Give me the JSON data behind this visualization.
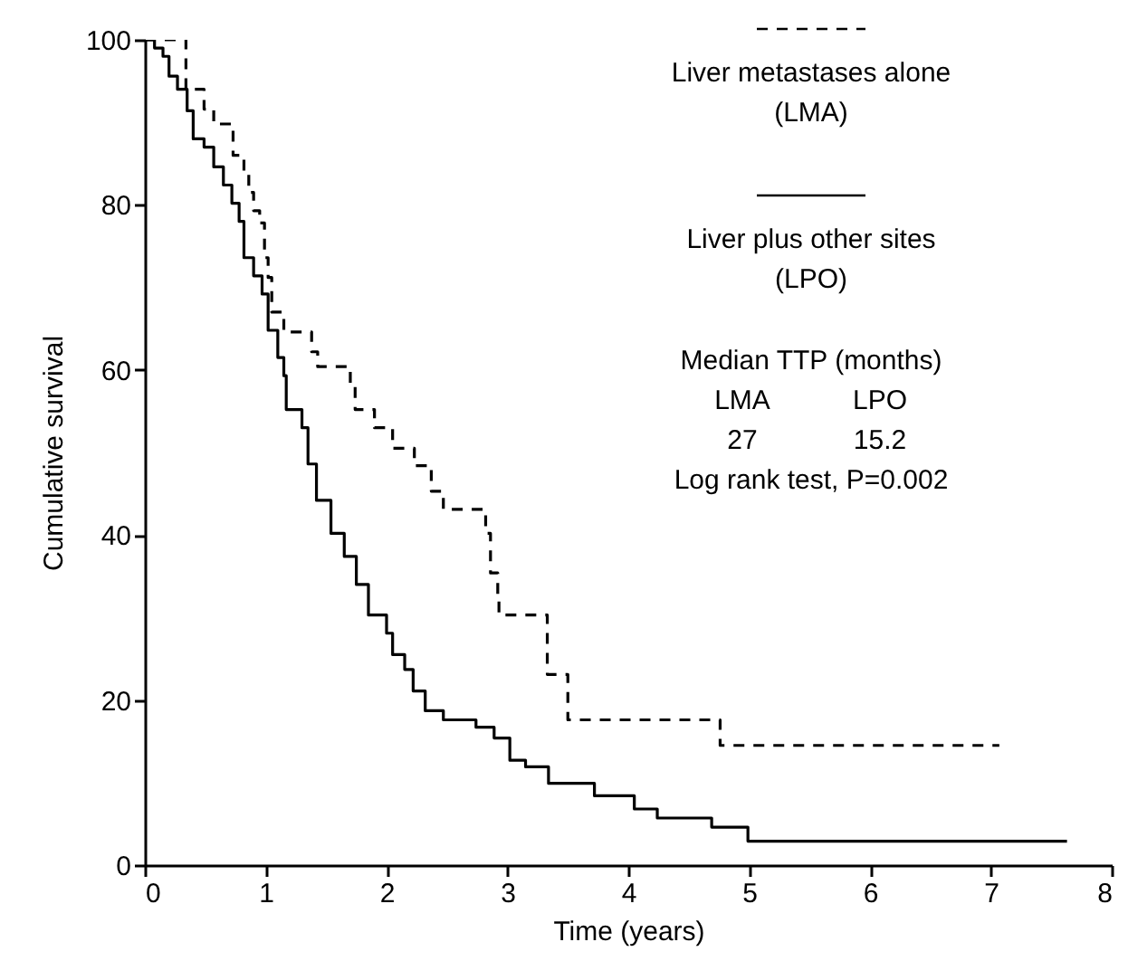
{
  "chart_data": {
    "type": "step",
    "xlabel": "Time (years)",
    "ylabel": "Cumulative survival",
    "xlim": [
      0,
      8
    ],
    "ylim": [
      0,
      100
    ],
    "xticks": [
      0,
      1,
      2,
      3,
      4,
      5,
      6,
      7,
      8
    ],
    "yticks": [
      0,
      20,
      40,
      60,
      80,
      100
    ],
    "grid": false,
    "legend": "top right",
    "marker": "none",
    "series": [
      {
        "name": "Liver metastases alone (LMA)",
        "color": "#000000",
        "line_style": "dashed",
        "x": [
          0,
          0.34,
          0.49,
          0.57,
          0.73,
          0.82,
          0.86,
          0.9,
          0.95,
          0.99,
          1.02,
          1.05,
          1.15,
          1.38,
          1.43,
          1.7,
          1.74,
          1.9,
          2.05,
          2.23,
          2.37,
          2.47,
          2.76,
          2.82,
          2.86,
          2.92,
          2.93,
          3.33,
          3.5,
          4.76,
          7.07
        ],
        "values": [
          100,
          94,
          91.6,
          89.8,
          86,
          83.7,
          81.5,
          79.3,
          77.8,
          73.6,
          71.2,
          67,
          64.6,
          62.2,
          60.4,
          58.2,
          55.2,
          53,
          50.5,
          48.4,
          45.3,
          43.1,
          43.1,
          40.2,
          35.4,
          32.5,
          30.3,
          23.1,
          17.6,
          14.5,
          14.5
        ]
      },
      {
        "name": "Liver plus other sites (LPO)",
        "color": "#000000",
        "line_style": "solid",
        "x": [
          0,
          0.08,
          0.15,
          0.2,
          0.27,
          0.35,
          0.4,
          0.49,
          0.57,
          0.65,
          0.72,
          0.78,
          0.82,
          0.9,
          0.97,
          1.02,
          1.1,
          1.15,
          1.17,
          1.3,
          1.35,
          1.42,
          1.54,
          1.65,
          1.75,
          1.85,
          2.0,
          2.05,
          2.15,
          2.22,
          2.32,
          2.47,
          2.74,
          2.89,
          3.02,
          3.15,
          3.34,
          3.72,
          4.05,
          4.24,
          4.69,
          4.99,
          7.63
        ],
        "values": [
          100,
          99,
          98,
          95.6,
          94,
          91.4,
          88,
          87,
          84.6,
          82.4,
          80.2,
          78,
          73.6,
          71.4,
          69.2,
          64.8,
          61.5,
          59.3,
          55.2,
          53,
          48.6,
          44.2,
          40.2,
          37.4,
          34,
          30.3,
          28.1,
          25.5,
          23.7,
          21.1,
          18.7,
          17.6,
          16.7,
          15.4,
          12.7,
          11.9,
          9.9,
          8.4,
          6.8,
          5.7,
          4.6,
          2.9,
          2.9
        ]
      }
    ],
    "annotations": [
      "Median TTP (months)",
      "LMA",
      "LPO",
      "27",
      "15.2",
      "Log rank test, P=0.002"
    ]
  }
}
